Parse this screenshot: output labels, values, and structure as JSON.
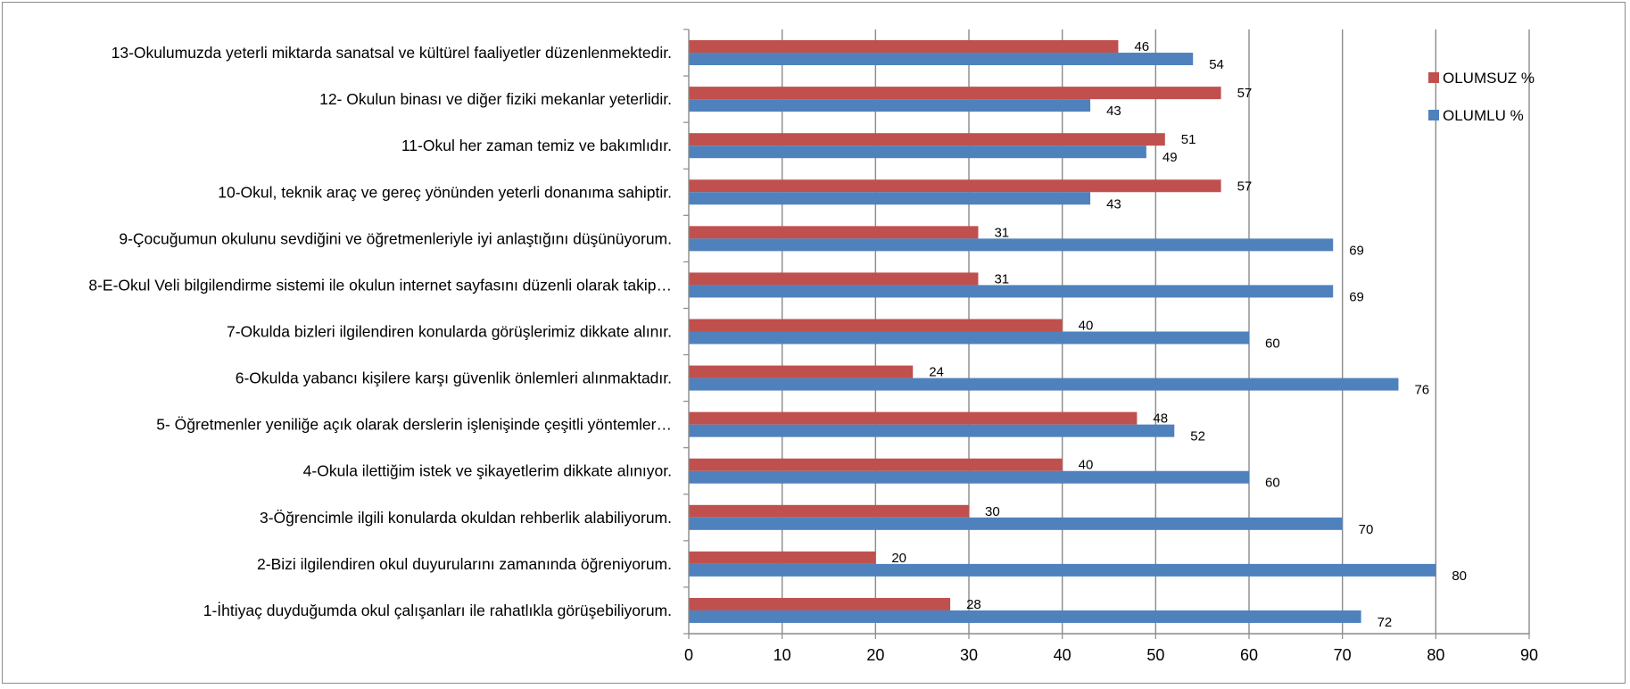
{
  "chart_data": {
    "type": "bar",
    "orientation": "horizontal",
    "title": "",
    "xlabel": "",
    "ylabel": "",
    "xlim": [
      0,
      90
    ],
    "xticks": [
      0,
      10,
      20,
      30,
      40,
      50,
      60,
      70,
      80,
      90
    ],
    "grid": "vertical major gridlines",
    "legend_position": "right",
    "categories": [
      "1-İhtiyaç duyduğumda okul çalışanları ile rahatlıkla görüşebiliyorum.",
      "2-Bizi ilgilendiren okul duyurularını zamanında öğreniyorum.",
      "3-Öğrencimle ilgili konularda okuldan rehberlik alabiliyorum.",
      "4-Okula ilettiğim istek ve şikayetlerim dikkate alınıyor.",
      "5- Öğretmenler yeniliğe açık olarak derslerin işlenişinde çeşitli yöntemler…",
      "6-Okulda yabancı kişilere karşı güvenlik önlemleri alınmaktadır.",
      "7-Okulda bizleri ilgilendiren konularda görüşlerimiz dikkate alınır.",
      "8-E-Okul Veli bilgilendirme sistemi ile okulun internet sayfasını düzenli olarak takip…",
      "9-Çocuğumun okulunu sevdiğini ve öğretmenleriyle iyi anlaştığını düşünüyorum.",
      "10-Okul, teknik araç ve gereç yönünden yeterli donanıma sahiptir.",
      "11-Okul her zaman temiz ve bakımlıdır.",
      "12- Okulun binası ve diğer fiziki mekanlar yeterlidir.",
      "13-Okulumuzda yeterli miktarda sanatsal ve kültürel faaliyetler düzenlenmektedir."
    ],
    "series": [
      {
        "name": "OLUMLU %",
        "color": "#4f81bd",
        "values": [
          72,
          80,
          70,
          60,
          52,
          76,
          60,
          69,
          69,
          43,
          49,
          43,
          54
        ]
      },
      {
        "name": "OLUMSUZ %",
        "color": "#c0504d",
        "values": [
          28,
          20,
          30,
          40,
          48,
          24,
          40,
          31,
          31,
          57,
          51,
          57,
          46
        ]
      }
    ],
    "legend_order": [
      "OLUMSUZ %",
      "OLUMLU %"
    ]
  }
}
